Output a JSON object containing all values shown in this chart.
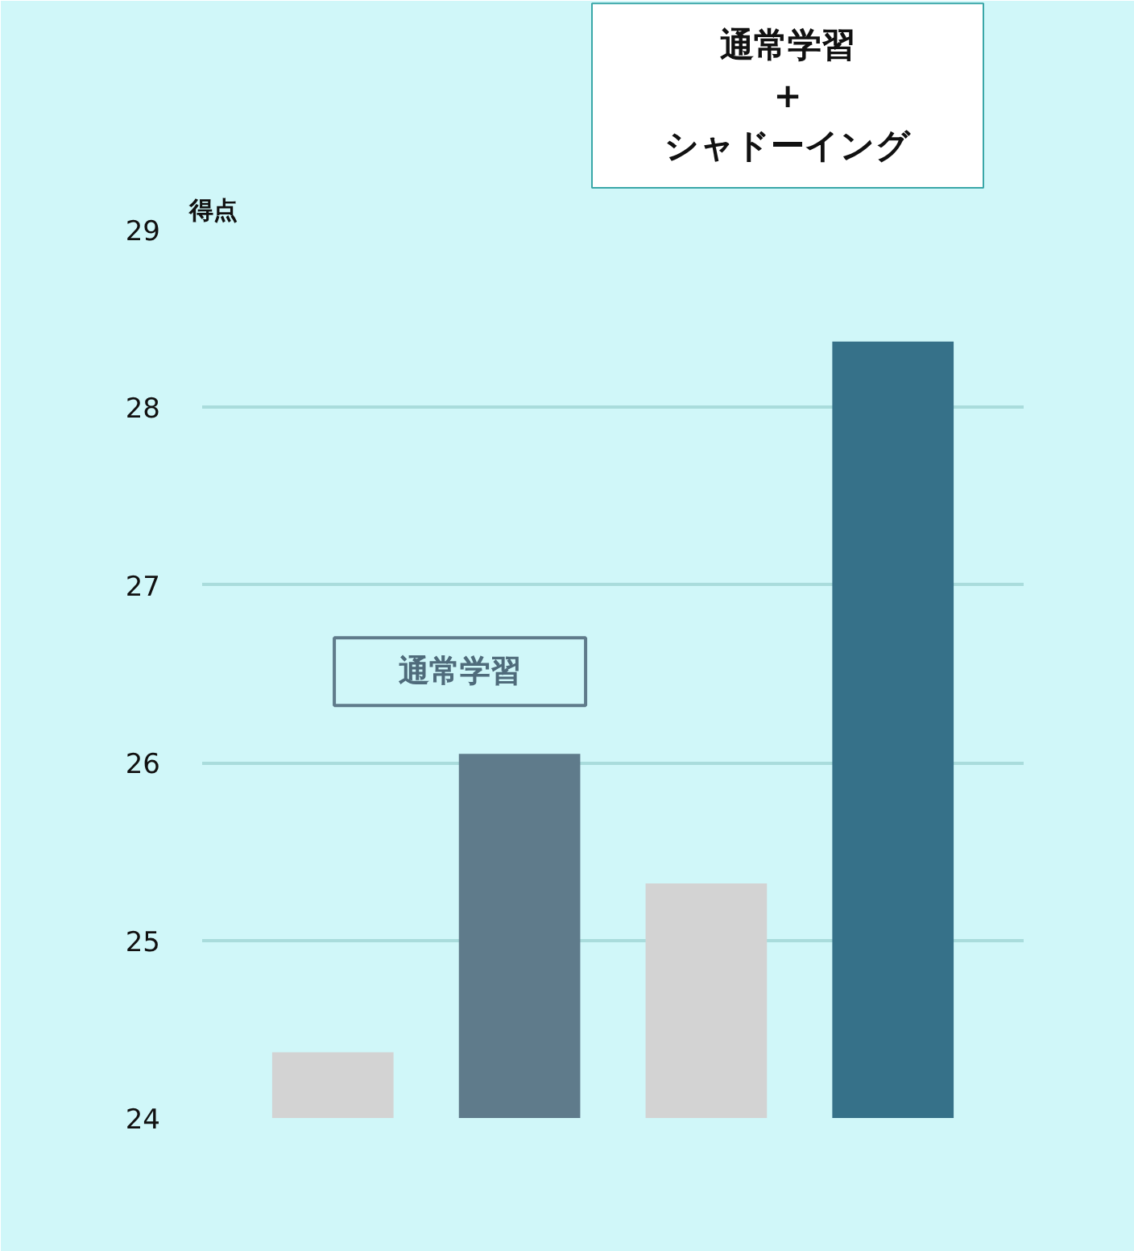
{
  "chart_data": {
    "type": "bar",
    "ylabel": "得点",
    "categories": [
      null,
      null,
      null,
      null
    ],
    "values": [
      24.37,
      26.05,
      25.32,
      28.37
    ],
    "colors": [
      "#d3d3d3",
      "#5f7b8b",
      "#d3d3d3",
      "#367189"
    ],
    "ylim": [
      24,
      29
    ],
    "yticks": [
      24,
      25,
      26,
      27,
      28,
      29
    ],
    "grid": "y",
    "annotations": [
      "通常学習",
      "通常学習\n+\nシャドーイング"
    ]
  }
}
